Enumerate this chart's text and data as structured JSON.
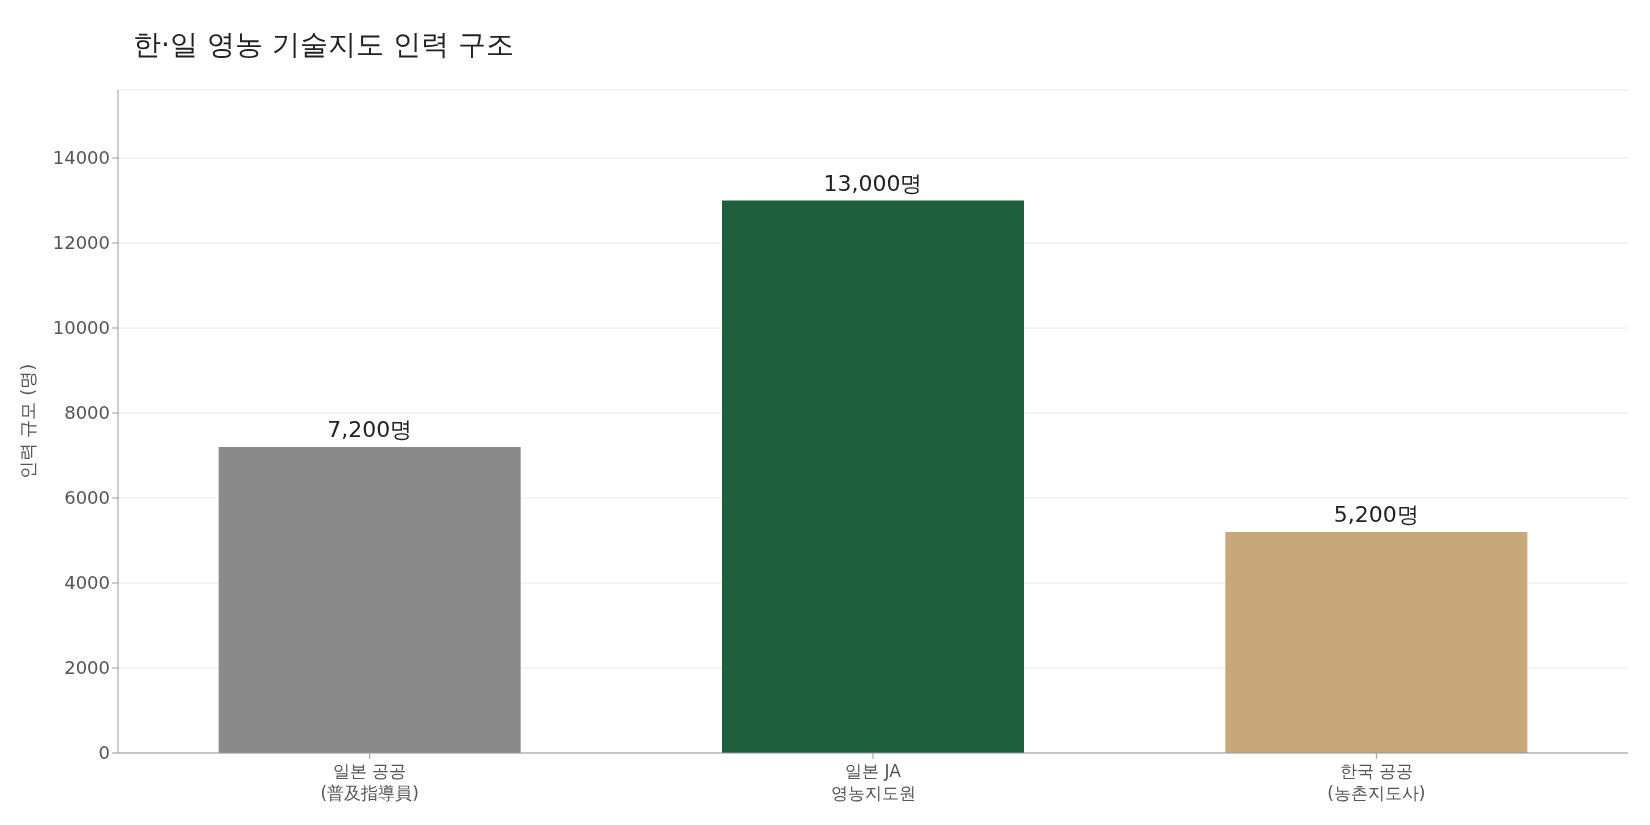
{
  "chart_data": {
    "type": "bar",
    "title": "한·일 영농 기술지도 인력 구조",
    "ylabel": "인력 규모 (명)",
    "categories": [
      "일본 공공\n(普及指導員)",
      "일본 JA\n영농지도원",
      "한국 공공\n(농촌지도사)"
    ],
    "values": [
      7200,
      13000,
      5200
    ],
    "colors": [
      "#8a8a8a",
      "#1f5f3d",
      "#c8a77a"
    ],
    "value_labels": [
      "7,200명",
      "13,000명",
      "5,200명"
    ],
    "ylim": [
      0,
      15600
    ],
    "yticks": [
      0,
      2000,
      4000,
      6000,
      8000,
      10000,
      12000,
      14000
    ],
    "grid": "y",
    "legend": false
  }
}
